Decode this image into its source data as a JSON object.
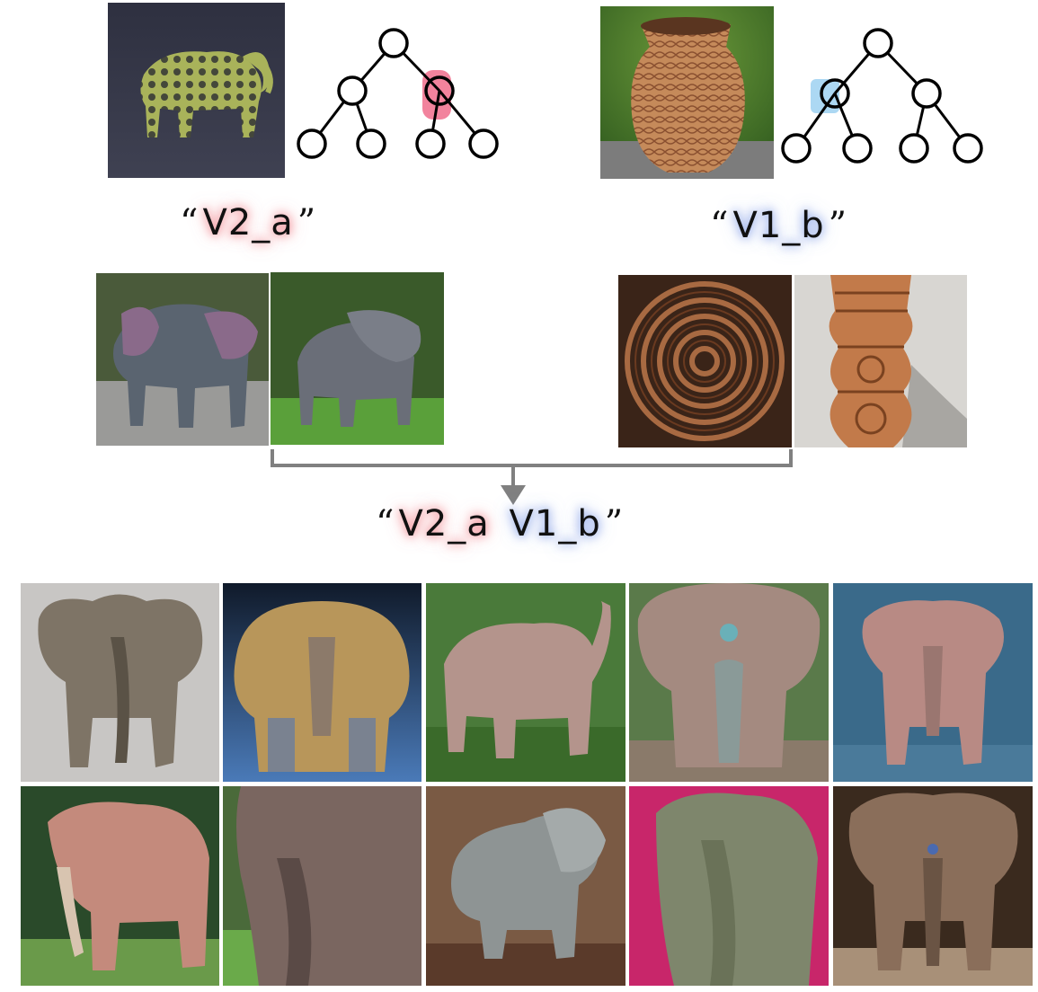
{
  "concept_a": {
    "source_image": "lattice-elephant-figurine",
    "token": "V2_a",
    "highlight_color": "#f06d8c",
    "examples": [
      "grey-elephant-walking-road",
      "grey-elephant-on-grass"
    ]
  },
  "concept_b": {
    "source_image": "carved-clay-vase",
    "token": "V1_b",
    "highlight_color": "#a8d6f2",
    "examples": [
      "carved-circular-pattern",
      "carved-column"
    ]
  },
  "combined": {
    "tokens": [
      "V2_a",
      "V1_b"
    ],
    "open_quote": "“",
    "close_quote": "”"
  },
  "quotes": {
    "open": "“",
    "close": "”"
  },
  "results": [
    "stone-carved-elephant",
    "golden-carved-elephant",
    "pink-clay-elephant-garden",
    "ornate-clay-elephant-blue-eye",
    "pink-elephant-blue-wall",
    "pink-carved-elephant-outdoor",
    "brown-clay-elephant-closeup",
    "grey-elephant-wood-bg",
    "green-elephant-pink-bg",
    "ornate-elephant-dark-bg"
  ],
  "colors": {
    "red_glow": "#f07882",
    "blue_glow": "#7896e6",
    "arrow": "#808080"
  }
}
